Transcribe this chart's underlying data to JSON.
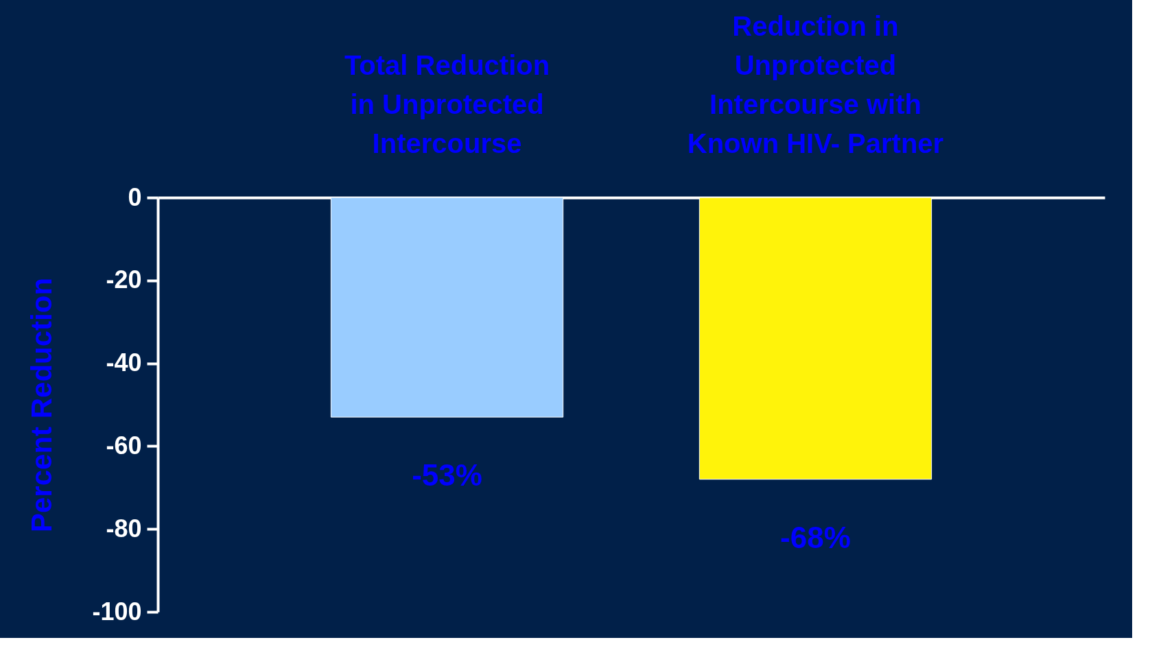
{
  "chart_data": {
    "type": "bar",
    "categories": [
      "Total Reduction in Unprotected Intercourse",
      "Reduction in Unprotected Intercourse with Known HIV- Partner"
    ],
    "values": [
      -53,
      -68
    ],
    "colors": [
      "#99ccff",
      "#fff30a"
    ],
    "value_labels": [
      "-53%",
      "-68%"
    ],
    "ylabel": "Percent Reduction",
    "ylim": [
      -100,
      0
    ],
    "yticks": [
      0,
      -20,
      -40,
      -60,
      -80,
      -100
    ],
    "grid": false
  }
}
